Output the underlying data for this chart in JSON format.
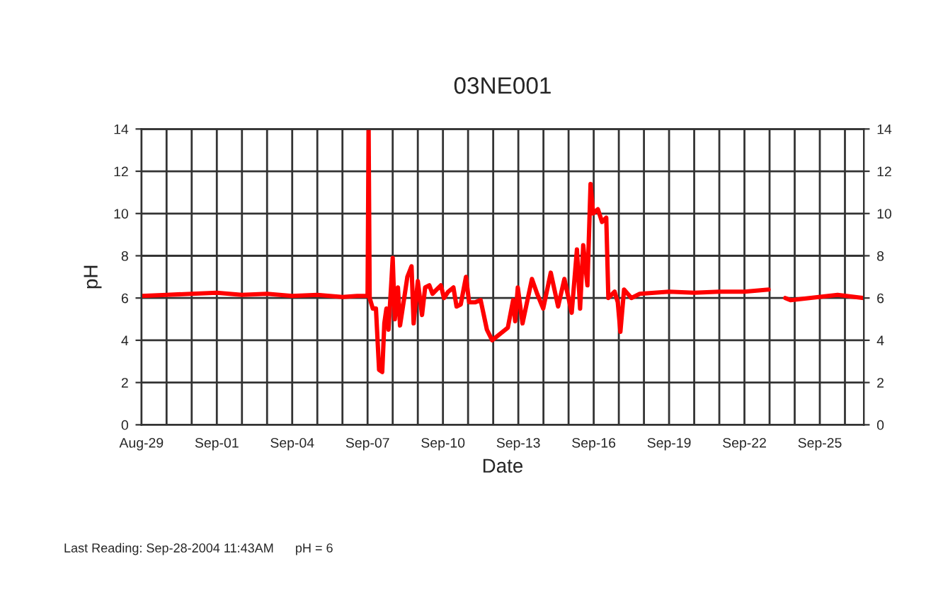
{
  "chart_data": {
    "type": "line",
    "title": "03NE001",
    "xlabel": "Date",
    "ylabel": "pH",
    "annotations": [
      "Last Reading: Sep-28-2004 11:43AM      pH = 6"
    ],
    "x": [
      "2004-08-29T00:00",
      "2004-08-30T00:00",
      "2004-08-31T00:00",
      "2004-09-01T00:00",
      "2004-09-02T00:00",
      "2004-09-03T00:00",
      "2004-09-04T00:00",
      "2004-09-05T00:00",
      "2004-09-06T00:00",
      "2004-09-06T14:00",
      "2004-09-07T00:00",
      "2004-09-07T01:00",
      "2004-09-07T02:00",
      "2004-09-07T05:00",
      "2004-09-07T08:00",
      "2004-09-07T11:00",
      "2004-09-07T14:00",
      "2004-09-07T16:00",
      "2004-09-07T18:00",
      "2004-09-07T20:00",
      "2004-09-07T23:00",
      "2004-09-08T00:00",
      "2004-09-08T02:00",
      "2004-09-08T05:00",
      "2004-09-08T07:00",
      "2004-09-08T11:00",
      "2004-09-08T14:00",
      "2004-09-08T18:00",
      "2004-09-08T20:00",
      "2004-09-09T00:00",
      "2004-09-09T04:00",
      "2004-09-09T07:00",
      "2004-09-09T11:00",
      "2004-09-09T14:00",
      "2004-09-09T18:00",
      "2004-09-09T22:00",
      "2004-09-10T01:00",
      "2004-09-10T05:00",
      "2004-09-10T10:00",
      "2004-09-10T13:00",
      "2004-09-10T17:00",
      "2004-09-10T22:00",
      "2004-09-11T01:00",
      "2004-09-11T07:00",
      "2004-09-11T12:00",
      "2004-09-11T18:00",
      "2004-09-11T23:00",
      "2004-09-12T14:00",
      "2004-09-12T19:00",
      "2004-09-12T21:00",
      "2004-09-12T23:30",
      "2004-09-13T04:00",
      "2004-09-13T13:00",
      "2004-09-13T18:00",
      "2004-09-13T23:45",
      "2004-09-14T07:00",
      "2004-09-14T14:00",
      "2004-09-14T20:00",
      "2004-09-15T03:00",
      "2004-09-15T08:00",
      "2004-09-15T11:00",
      "2004-09-15T14:00",
      "2004-09-15T18:00",
      "2004-09-15T21:00",
      "2004-09-15T23:30",
      "2004-09-16T04:00",
      "2004-09-16T08:00",
      "2004-09-16T12:00",
      "2004-09-16T14:00",
      "2004-09-16T20:00",
      "2004-09-16T23:00",
      "2004-09-17T01:30",
      "2004-09-17T05:00",
      "2004-09-17T12:00",
      "2004-09-17T20:00",
      "2004-09-19T00:00",
      "2004-09-20T00:00",
      "2004-09-21T00:00",
      "2004-09-22T00:00",
      "2004-09-22T23:00",
      "2004-09-23T12:00",
      "2004-09-23T15:00",
      "2004-09-23T20:00",
      "2004-09-24T14:00",
      "2004-09-25T17:00",
      "2004-09-26T18:00"
    ],
    "series": [
      {
        "color": "#ff0000",
        "values": [
          6.1,
          6.15,
          6.2,
          6.25,
          6.15,
          6.2,
          6.1,
          6.15,
          6.05,
          6.1,
          6.1,
          14,
          6.0,
          5.5,
          5.5,
          2.6,
          2.5,
          4.8,
          5.5,
          4.5,
          7.0,
          7.9,
          5.0,
          6.5,
          4.7,
          6.0,
          7.0,
          7.5,
          4.8,
          6.8,
          5.2,
          6.5,
          6.6,
          6.2,
          6.4,
          6.6,
          6.0,
          6.3,
          6.5,
          5.6,
          5.7,
          7.0,
          5.8,
          5.8,
          5.9,
          4.5,
          4.0,
          4.6,
          5.9,
          4.9,
          6.5,
          4.8,
          6.9,
          6.2,
          5.5,
          7.2,
          5.6,
          6.9,
          5.3,
          8.3,
          5.5,
          8.5,
          6.6,
          11.4,
          10.0,
          10.2,
          9.6,
          9.8,
          6.0,
          6.3,
          5.8,
          4.4,
          6.4,
          6.0,
          6.2,
          6.3,
          6.25,
          6.3,
          6.3,
          6.4,
          null,
          6.0,
          5.9,
          6.0,
          6.15,
          6.0
        ]
      }
    ],
    "xlim": [
      "2004-08-29T00:00",
      "2004-09-26T18:00"
    ],
    "xticks": [
      {
        "value": "2004-08-29",
        "label": "Aug-29"
      },
      {
        "value": "2004-08-30",
        "label": null
      },
      {
        "value": "2004-08-31",
        "label": null
      },
      {
        "value": "2004-09-01",
        "label": "Sep-01"
      },
      {
        "value": "2004-09-02",
        "label": null
      },
      {
        "value": "2004-09-03",
        "label": null
      },
      {
        "value": "2004-09-04",
        "label": "Sep-04"
      },
      {
        "value": "2004-09-05",
        "label": null
      },
      {
        "value": "2004-09-06",
        "label": null
      },
      {
        "value": "2004-09-07",
        "label": "Sep-07"
      },
      {
        "value": "2004-09-08",
        "label": null
      },
      {
        "value": "2004-09-09",
        "label": null
      },
      {
        "value": "2004-09-10",
        "label": "Sep-10"
      },
      {
        "value": "2004-09-11",
        "label": null
      },
      {
        "value": "2004-09-12",
        "label": null
      },
      {
        "value": "2004-09-13",
        "label": "Sep-13"
      },
      {
        "value": "2004-09-14",
        "label": null
      },
      {
        "value": "2004-09-15",
        "label": null
      },
      {
        "value": "2004-09-16",
        "label": "Sep-16"
      },
      {
        "value": "2004-09-17",
        "label": null
      },
      {
        "value": "2004-09-18",
        "label": null
      },
      {
        "value": "2004-09-19",
        "label": "Sep-19"
      },
      {
        "value": "2004-09-20",
        "label": null
      },
      {
        "value": "2004-09-21",
        "label": null
      },
      {
        "value": "2004-09-22",
        "label": "Sep-22"
      },
      {
        "value": "2004-09-23",
        "label": null
      },
      {
        "value": "2004-09-24",
        "label": null
      },
      {
        "value": "2004-09-25",
        "label": "Sep-25"
      },
      {
        "value": "2004-09-26",
        "label": null
      }
    ],
    "ylim": [
      0,
      14
    ],
    "yticks": [
      0,
      2,
      4,
      6,
      8,
      10,
      12,
      14
    ],
    "y2lim": [
      0,
      14
    ],
    "y2ticks": [
      0,
      2,
      4,
      6,
      8,
      10,
      12,
      14
    ],
    "grid": true,
    "legend": false,
    "marker": "none",
    "line_style": "solid"
  }
}
